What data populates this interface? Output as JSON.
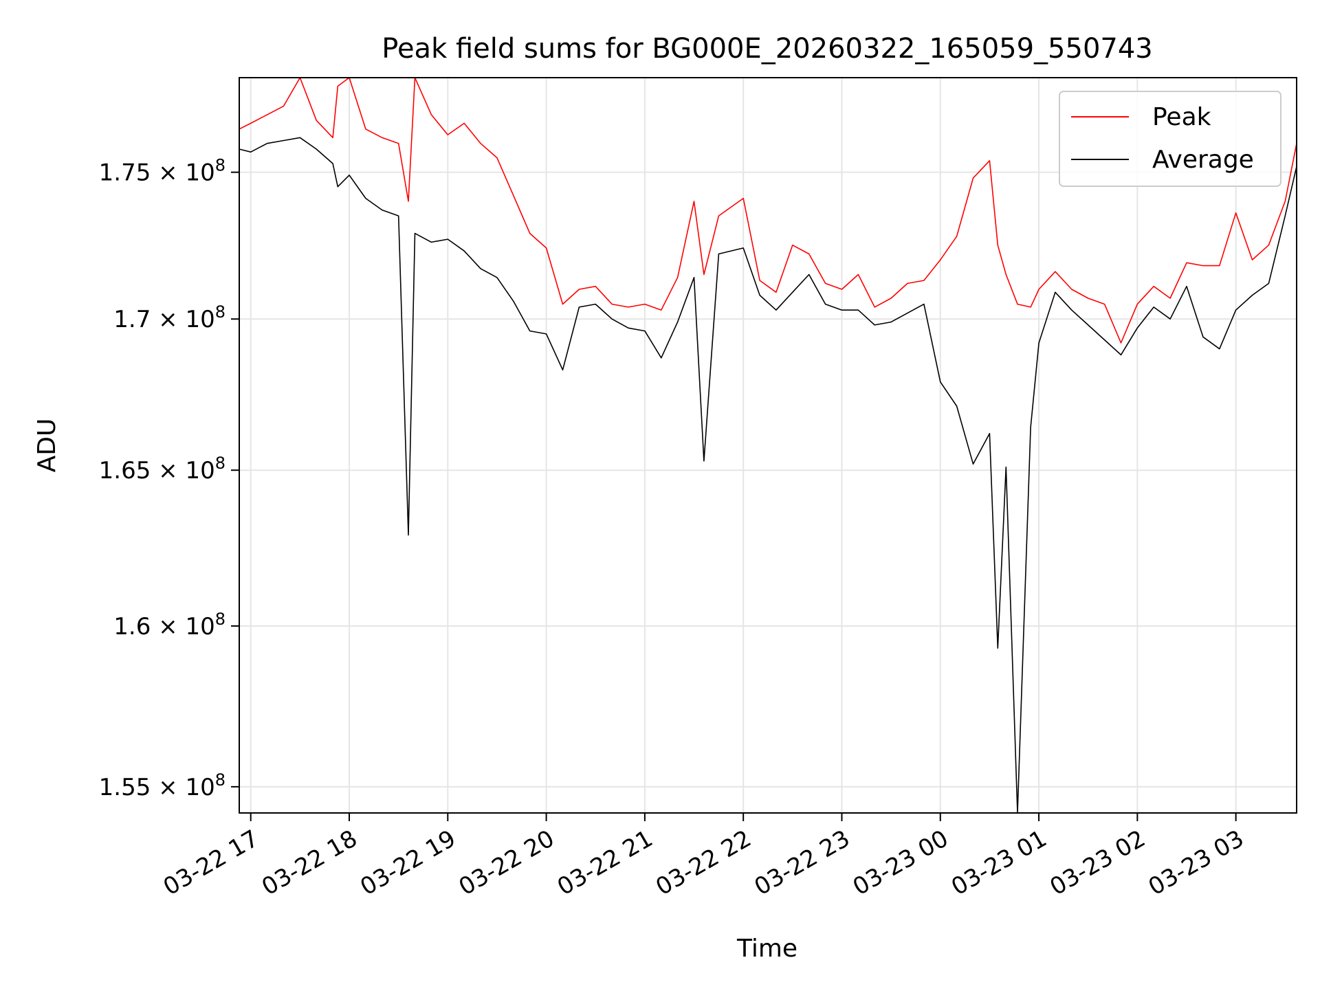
{
  "chart_data": {
    "type": "line",
    "title": "Peak field sums for BG000E_20260322_165059_550743",
    "xlabel": "Time",
    "ylabel": "ADU",
    "y_scale": "log",
    "ylim": [
      154200000,
      178300000
    ],
    "xlim": [
      "2026-03-22 16:53",
      "2026-03-23 03:37"
    ],
    "x_ticks": [
      {
        "t": "2026-03-22 17:00",
        "label": "03-22 17"
      },
      {
        "t": "2026-03-22 18:00",
        "label": "03-22 18"
      },
      {
        "t": "2026-03-22 19:00",
        "label": "03-22 19"
      },
      {
        "t": "2026-03-22 20:00",
        "label": "03-22 20"
      },
      {
        "t": "2026-03-22 21:00",
        "label": "03-22 21"
      },
      {
        "t": "2026-03-22 22:00",
        "label": "03-22 22"
      },
      {
        "t": "2026-03-22 23:00",
        "label": "03-22 23"
      },
      {
        "t": "2026-03-23 00:00",
        "label": "03-23 00"
      },
      {
        "t": "2026-03-23 01:00",
        "label": "03-23 01"
      },
      {
        "t": "2026-03-23 02:00",
        "label": "03-23 02"
      },
      {
        "t": "2026-03-23 03:00",
        "label": "03-23 03"
      }
    ],
    "y_ticks": [
      {
        "value": 155000000,
        "mantissa": "1.55",
        "base": "10",
        "exponent": "8"
      },
      {
        "value": 160000000,
        "mantissa": "1.6",
        "base": "10",
        "exponent": "8"
      },
      {
        "value": 165000000,
        "mantissa": "1.65",
        "base": "10",
        "exponent": "8"
      },
      {
        "value": 170000000,
        "mantissa": "1.7",
        "base": "10",
        "exponent": "8"
      },
      {
        "value": 175000000,
        "mantissa": "1.75",
        "base": "10",
        "exponent": "8"
      }
    ],
    "grid": true,
    "legend": {
      "position": "top-right",
      "entries": [
        {
          "label": "Peak",
          "color": "#ff0000"
        },
        {
          "label": "Average",
          "color": "#000000"
        }
      ]
    },
    "series": [
      {
        "name": "Average",
        "color": "#000000",
        "x": [
          "2026-03-22 16:53",
          "2026-03-22 17:00",
          "2026-03-22 17:10",
          "2026-03-22 17:20",
          "2026-03-22 17:30",
          "2026-03-22 17:40",
          "2026-03-22 17:50",
          "2026-03-22 17:53",
          "2026-03-22 18:00",
          "2026-03-22 18:10",
          "2026-03-22 18:20",
          "2026-03-22 18:30",
          "2026-03-22 18:36",
          "2026-03-22 18:40",
          "2026-03-22 18:50",
          "2026-03-22 19:00",
          "2026-03-22 19:10",
          "2026-03-22 19:20",
          "2026-03-22 19:30",
          "2026-03-22 19:40",
          "2026-03-22 19:50",
          "2026-03-22 20:00",
          "2026-03-22 20:10",
          "2026-03-22 20:20",
          "2026-03-22 20:30",
          "2026-03-22 20:40",
          "2026-03-22 20:50",
          "2026-03-22 21:00",
          "2026-03-22 21:10",
          "2026-03-22 21:20",
          "2026-03-22 21:30",
          "2026-03-22 21:36",
          "2026-03-22 21:45",
          "2026-03-22 22:00",
          "2026-03-22 22:10",
          "2026-03-22 22:20",
          "2026-03-22 22:30",
          "2026-03-22 22:40",
          "2026-03-22 22:50",
          "2026-03-22 23:00",
          "2026-03-22 23:10",
          "2026-03-22 23:20",
          "2026-03-22 23:30",
          "2026-03-22 23:40",
          "2026-03-22 23:50",
          "2026-03-23 00:00",
          "2026-03-23 00:10",
          "2026-03-23 00:20",
          "2026-03-23 00:30",
          "2026-03-23 00:35",
          "2026-03-23 00:40",
          "2026-03-23 00:47",
          "2026-03-23 00:55",
          "2026-03-23 01:00",
          "2026-03-23 01:10",
          "2026-03-23 01:20",
          "2026-03-23 01:30",
          "2026-03-23 01:40",
          "2026-03-23 01:50",
          "2026-03-23 02:00",
          "2026-03-23 02:10",
          "2026-03-23 02:20",
          "2026-03-23 02:30",
          "2026-03-23 02:40",
          "2026-03-23 02:50",
          "2026-03-23 03:00",
          "2026-03-23 03:10",
          "2026-03-23 03:20",
          "2026-03-23 03:30",
          "2026-03-23 03:37"
        ],
        "y": [
          175800000,
          175700000,
          176000000,
          176100000,
          176200000,
          175800000,
          175300000,
          174500000,
          174900000,
          174100000,
          173700000,
          173500000,
          162900000,
          172900000,
          172600000,
          172700000,
          172300000,
          171700000,
          171400000,
          170600000,
          169600000,
          169500000,
          168300000,
          170400000,
          170500000,
          170000000,
          169700000,
          169600000,
          168700000,
          169900000,
          171400000,
          165300000,
          172200000,
          172400000,
          170800000,
          170300000,
          170900000,
          171500000,
          170500000,
          170300000,
          170300000,
          169800000,
          169900000,
          170200000,
          170500000,
          167900000,
          167100000,
          165200000,
          166200000,
          159300000,
          165100000,
          154200000,
          166400000,
          169200000,
          170900000,
          170300000,
          169800000,
          169300000,
          168800000,
          169700000,
          170400000,
          170000000,
          171100000,
          169400000,
          169000000,
          170300000,
          170800000,
          171200000,
          173500000,
          175200000
        ]
      },
      {
        "name": "Peak",
        "color": "#ff0000",
        "x": [
          "2026-03-22 16:53",
          "2026-03-22 17:00",
          "2026-03-22 17:10",
          "2026-03-22 17:20",
          "2026-03-22 17:30",
          "2026-03-22 17:40",
          "2026-03-22 17:50",
          "2026-03-22 17:53",
          "2026-03-22 18:00",
          "2026-03-22 18:10",
          "2026-03-22 18:20",
          "2026-03-22 18:30",
          "2026-03-22 18:36",
          "2026-03-22 18:40",
          "2026-03-22 18:50",
          "2026-03-22 19:00",
          "2026-03-22 19:10",
          "2026-03-22 19:20",
          "2026-03-22 19:30",
          "2026-03-22 19:40",
          "2026-03-22 19:50",
          "2026-03-22 20:00",
          "2026-03-22 20:10",
          "2026-03-22 20:20",
          "2026-03-22 20:30",
          "2026-03-22 20:40",
          "2026-03-22 20:50",
          "2026-03-22 21:00",
          "2026-03-22 21:10",
          "2026-03-22 21:20",
          "2026-03-22 21:30",
          "2026-03-22 21:36",
          "2026-03-22 21:45",
          "2026-03-22 22:00",
          "2026-03-22 22:10",
          "2026-03-22 22:20",
          "2026-03-22 22:30",
          "2026-03-22 22:40",
          "2026-03-22 22:50",
          "2026-03-22 23:00",
          "2026-03-22 23:10",
          "2026-03-22 23:20",
          "2026-03-22 23:30",
          "2026-03-22 23:40",
          "2026-03-22 23:50",
          "2026-03-23 00:00",
          "2026-03-23 00:10",
          "2026-03-23 00:20",
          "2026-03-23 00:30",
          "2026-03-23 00:35",
          "2026-03-23 00:40",
          "2026-03-23 00:47",
          "2026-03-23 00:55",
          "2026-03-23 01:00",
          "2026-03-23 01:10",
          "2026-03-23 01:20",
          "2026-03-23 01:30",
          "2026-03-23 01:40",
          "2026-03-23 01:50",
          "2026-03-23 02:00",
          "2026-03-23 02:10",
          "2026-03-23 02:20",
          "2026-03-23 02:30",
          "2026-03-23 02:40",
          "2026-03-23 02:50",
          "2026-03-23 03:00",
          "2026-03-23 03:10",
          "2026-03-23 03:20",
          "2026-03-23 03:30",
          "2026-03-23 03:37"
        ],
        "y": [
          176500000,
          176700000,
          177000000,
          177300000,
          178300000,
          176800000,
          176200000,
          178000000,
          178300000,
          176500000,
          176200000,
          176000000,
          174000000,
          178300000,
          177000000,
          176300000,
          176700000,
          176000000,
          175500000,
          174200000,
          172900000,
          172400000,
          170500000,
          171000000,
          171100000,
          170500000,
          170400000,
          170500000,
          170300000,
          171400000,
          174000000,
          171500000,
          173500000,
          174100000,
          171300000,
          170900000,
          172500000,
          172200000,
          171200000,
          171000000,
          171500000,
          170400000,
          170700000,
          171200000,
          171300000,
          172000000,
          172800000,
          174800000,
          175400000,
          172500000,
          171500000,
          170500000,
          170400000,
          171000000,
          171600000,
          171000000,
          170700000,
          170500000,
          169200000,
          170500000,
          171100000,
          170700000,
          171900000,
          171800000,
          171800000,
          173600000,
          172000000,
          172500000,
          174000000,
          176000000
        ]
      }
    ]
  }
}
